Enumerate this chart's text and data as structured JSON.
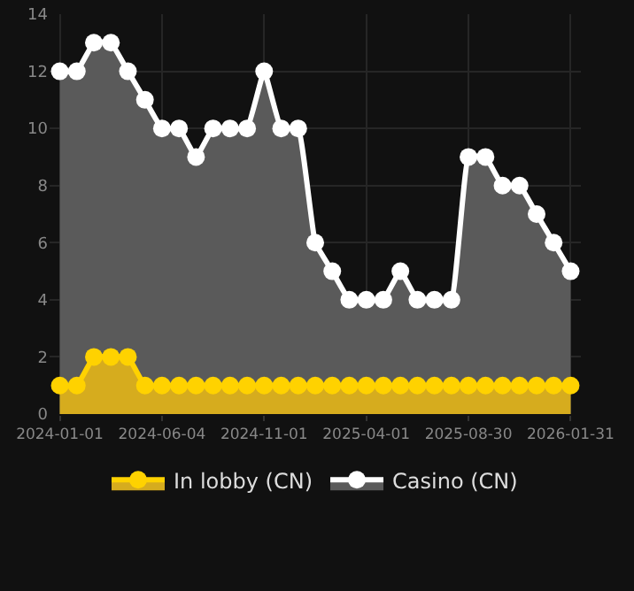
{
  "chart_data": {
    "type": "area",
    "categories": [
      "2024-01-01",
      null,
      null,
      null,
      null,
      null,
      "2024-06-04",
      null,
      null,
      null,
      null,
      null,
      "2024-11-01",
      null,
      null,
      null,
      null,
      null,
      "2025-04-01",
      null,
      null,
      null,
      null,
      null,
      "2025-08-30",
      null,
      null,
      null,
      null,
      null,
      "2026-01-31"
    ],
    "series": [
      {
        "name": "In lobby (CN)",
        "color": "#ffd200",
        "values": [
          1,
          1,
          2,
          2,
          2,
          1,
          1,
          1,
          1,
          1,
          1,
          1,
          1,
          1,
          1,
          1,
          1,
          1,
          1,
          1,
          1,
          1,
          1,
          1,
          1,
          1,
          1,
          1,
          1,
          1,
          1
        ]
      },
      {
        "name": "Casino (CN)",
        "color": "#ffffff",
        "values": [
          12,
          12,
          13,
          13,
          12,
          11,
          10,
          10,
          9,
          10,
          10,
          10,
          12,
          10,
          10,
          6,
          5,
          4,
          4,
          4,
          5,
          4,
          4,
          4,
          9,
          9,
          8,
          8,
          7,
          6,
          5
        ]
      }
    ],
    "ylim": [
      0,
      14
    ],
    "yticks": [
      0,
      2,
      4,
      6,
      8,
      10,
      12,
      14
    ],
    "grid": true,
    "legend": "bottom",
    "marker": "circle",
    "line_style": "solid"
  }
}
